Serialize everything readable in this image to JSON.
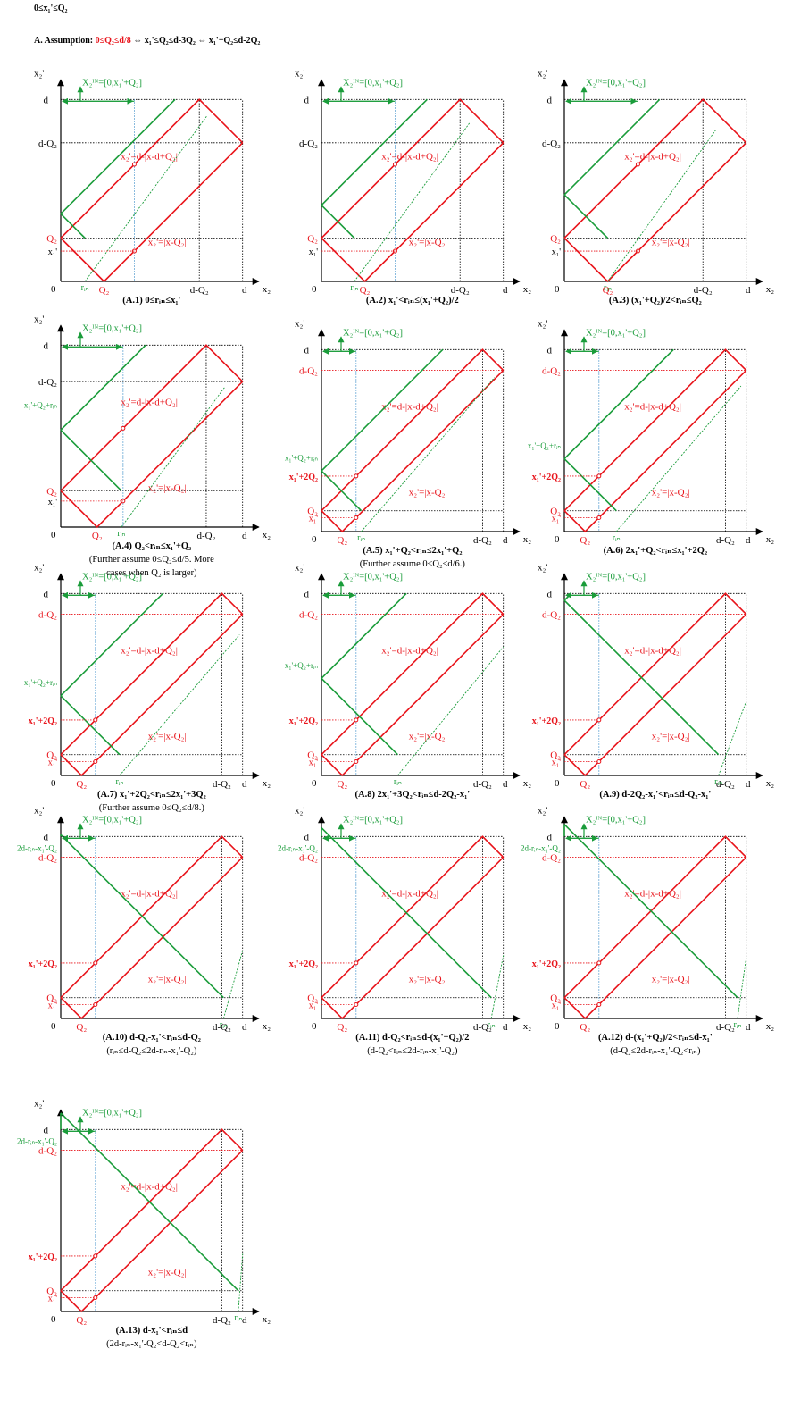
{
  "header": {
    "title": "0≤x₁'≤Q₂",
    "assumption_prefix": "A. Assumption: ",
    "assumption_red": "0≤Q₂≤d/8",
    "assumption_rest": "  ⇔  x₁'≤Q₂≤d-3Q₂  ⇔  x₁'+Q₂≤d-2Q₂"
  },
  "colors": {
    "red": "#e8141b",
    "green": "#1a9c3a",
    "blue": "#3c8fc9",
    "black": "#000000"
  },
  "labels": {
    "x2": "x₂",
    "x2p": "x₂'",
    "d": "d",
    "dQ2": "d-Q₂",
    "Q2": "Q₂",
    "x1": "x₁'",
    "rin": "rᵢₙ",
    "zero": "0",
    "X2IN": "X₂ᴵᴺ=[0,x₁'+Q₂]",
    "X2IN_short": "X₂ᴵᴺ",
    "upper": "x₂'=d-|x-d+Q₂|",
    "lower": "x₂'=|x-Q₂|",
    "x1Q2rin": "x₁'+Q₂+rᵢₙ",
    "x1_2Q2": "x₁'+2Q₂",
    "twod": "2d-rᵢₙ-x₁'-Q₂"
  },
  "panels": [
    {
      "cap": [
        "(A.1)  0≤rᵢₙ≤x₁'"
      ]
    },
    {
      "cap": [
        "(A.2)  x₁'<rᵢₙ≤(x₁'+Q₂)/2"
      ]
    },
    {
      "cap": [
        "(A.3)  (x₁'+Q₂)/2<rᵢₙ≤Q₂"
      ]
    },
    {
      "cap": [
        "(A.4)  Q₂<rᵢₙ≤x₁'+Q₂",
        "(Further assume 0≤Q₂≤d/5. More",
        "cases when Q₂ is larger)"
      ]
    },
    {
      "cap": [
        "(A.5)  x₁'+Q₂<rᵢₙ≤2x₁'+Q₂",
        "(Further assume 0≤Q₂≤d/6.)"
      ]
    },
    {
      "cap": [
        "(A.6)  2x₁'+Q₂<rᵢₙ≤x₁'+2Q₂"
      ]
    },
    {
      "cap": [
        "(A.7)  x₁'+2Q₂<rᵢₙ≤2x₁'+3Q₂",
        "(Further assume 0≤Q₂≤d/8.)"
      ]
    },
    {
      "cap": [
        "(A.8)  2x₁'+3Q₂<rᵢₙ≤d-2Q₂-x₁'"
      ]
    },
    {
      "cap": [
        "(A.9)  d-2Q₂-x₁'<rᵢₙ≤d-Q₂-x₁'"
      ]
    },
    {
      "cap": [
        "(A.10)  d-Q₂-x₁'<rᵢₙ≤d-Q₂",
        "(rᵢₙ≤d-Q₂≤2d-rᵢₙ-x₁'-Q₂)"
      ]
    },
    {
      "cap": [
        "(A.11)  d-Q₂<rᵢₙ≤d-(x₁'+Q₂)/2",
        "(d-Q₂<rᵢₙ≤2d-rᵢₙ-x₁'-Q₂)"
      ]
    },
    {
      "cap": [
        "(A.12)  d-(x₁'+Q₂)/2<rᵢₙ≤d-x₁'",
        "(d-Q₂≤2d-rᵢₙ-x₁'-Q₂<rᵢₙ)"
      ]
    },
    {
      "cap": [
        "(A.13)  d-x₁'<rᵢₙ≤d",
        "(2d-rᵢₙ-x₁'-Q₂<d-Q₂<rᵢₙ)"
      ]
    }
  ]
}
